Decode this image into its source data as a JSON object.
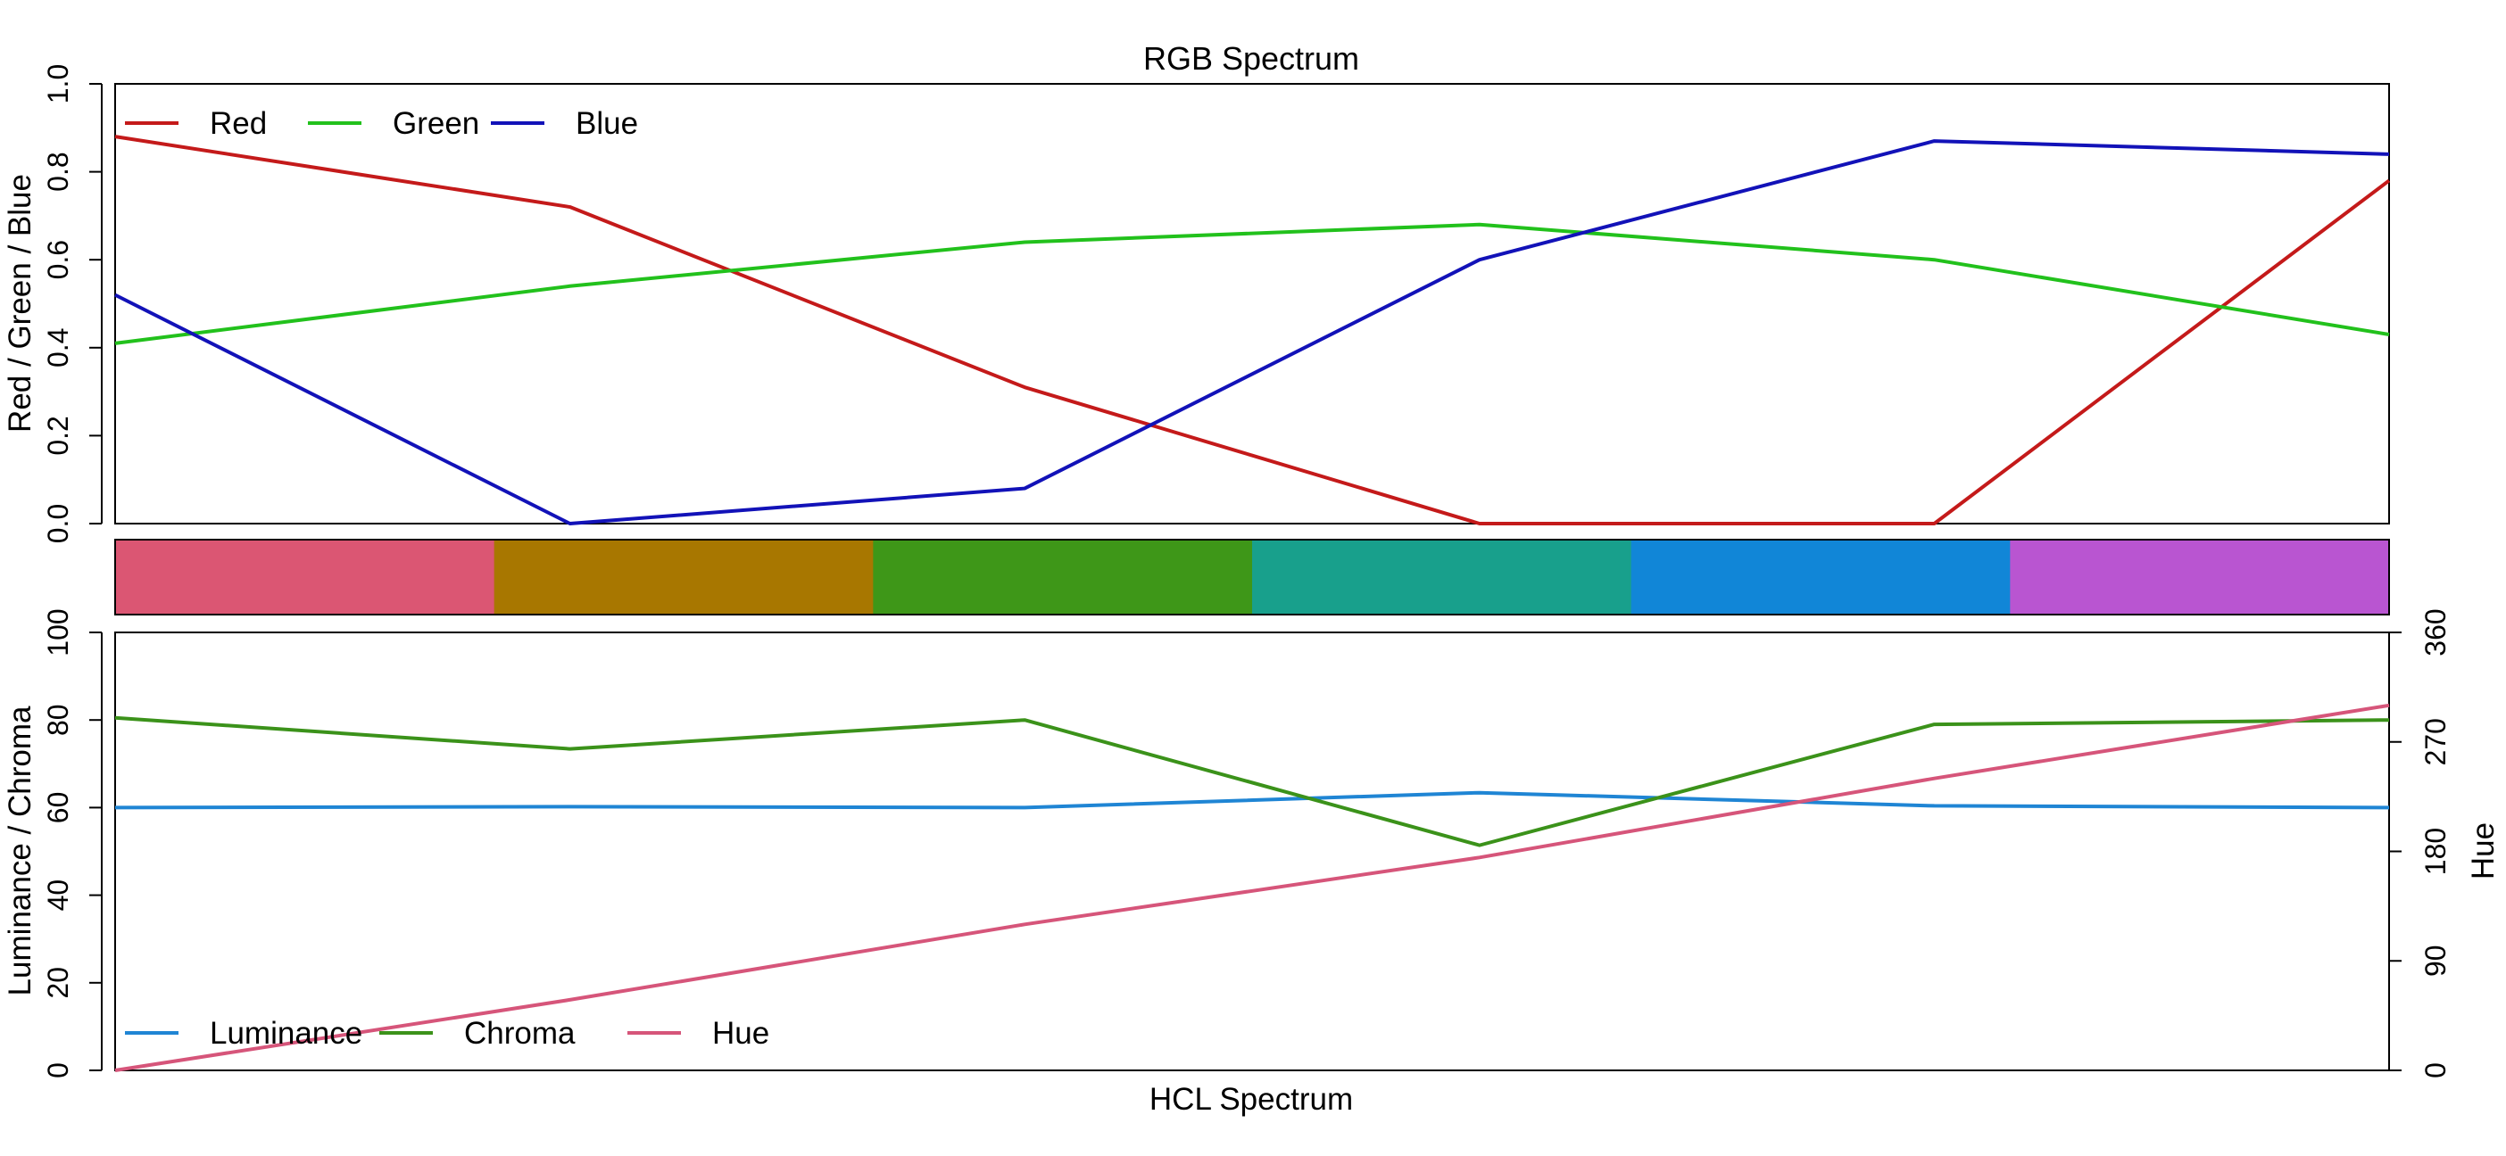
{
  "chart_data": [
    {
      "type": "line",
      "title": "RGB Spectrum",
      "xlabel": "",
      "ylabel": "Red / Green / Blue",
      "ylim": [
        0,
        1
      ],
      "yticks": [
        "0.0",
        "0.2",
        "0.4",
        "0.6",
        "0.8",
        "1.0"
      ],
      "x": [
        1,
        2,
        3,
        4,
        5,
        6
      ],
      "legend_position": "top-left",
      "series": [
        {
          "name": "Red",
          "color": "#C41A1A",
          "values": [
            0.88,
            0.72,
            0.31,
            0.0,
            0.0,
            0.78
          ]
        },
        {
          "name": "Green",
          "color": "#22C11C",
          "values": [
            0.41,
            0.54,
            0.64,
            0.68,
            0.6,
            0.43
          ]
        },
        {
          "name": "Blue",
          "color": "#1212B8",
          "values": [
            0.52,
            0.0,
            0.08,
            0.6,
            0.87,
            0.84
          ]
        }
      ]
    },
    {
      "type": "heatmap",
      "title": "",
      "swatches": [
        "#DB5673",
        "#A87700",
        "#3E9718",
        "#18A08C",
        "#1186D7",
        "#B955D1"
      ]
    },
    {
      "type": "line",
      "title": "",
      "xlabel": "HCL Spectrum",
      "ylabel": "Luminance / Chroma",
      "ylabel_right": "Hue",
      "ylim": [
        0,
        100
      ],
      "ylim_right": [
        0,
        360
      ],
      "yticks": [
        "0",
        "20",
        "40",
        "60",
        "80",
        "100"
      ],
      "yticks_right": [
        "0",
        "90",
        "180",
        "270",
        "360"
      ],
      "x": [
        1,
        2,
        3,
        4,
        5,
        6
      ],
      "legend_position": "bottom-left",
      "series": [
        {
          "name": "Luminance",
          "axis": "left",
          "color": "#1F85D4",
          "values": [
            60,
            60.2,
            60,
            63.4,
            60.4,
            60
          ]
        },
        {
          "name": "Chroma",
          "axis": "left",
          "color": "#3B921A",
          "values": [
            80.5,
            73.4,
            80,
            51.4,
            79,
            80
          ]
        },
        {
          "name": "Hue",
          "axis": "right",
          "color": "#D6557A",
          "values": [
            0,
            58,
            120,
            175,
            240,
            300
          ]
        }
      ]
    }
  ]
}
